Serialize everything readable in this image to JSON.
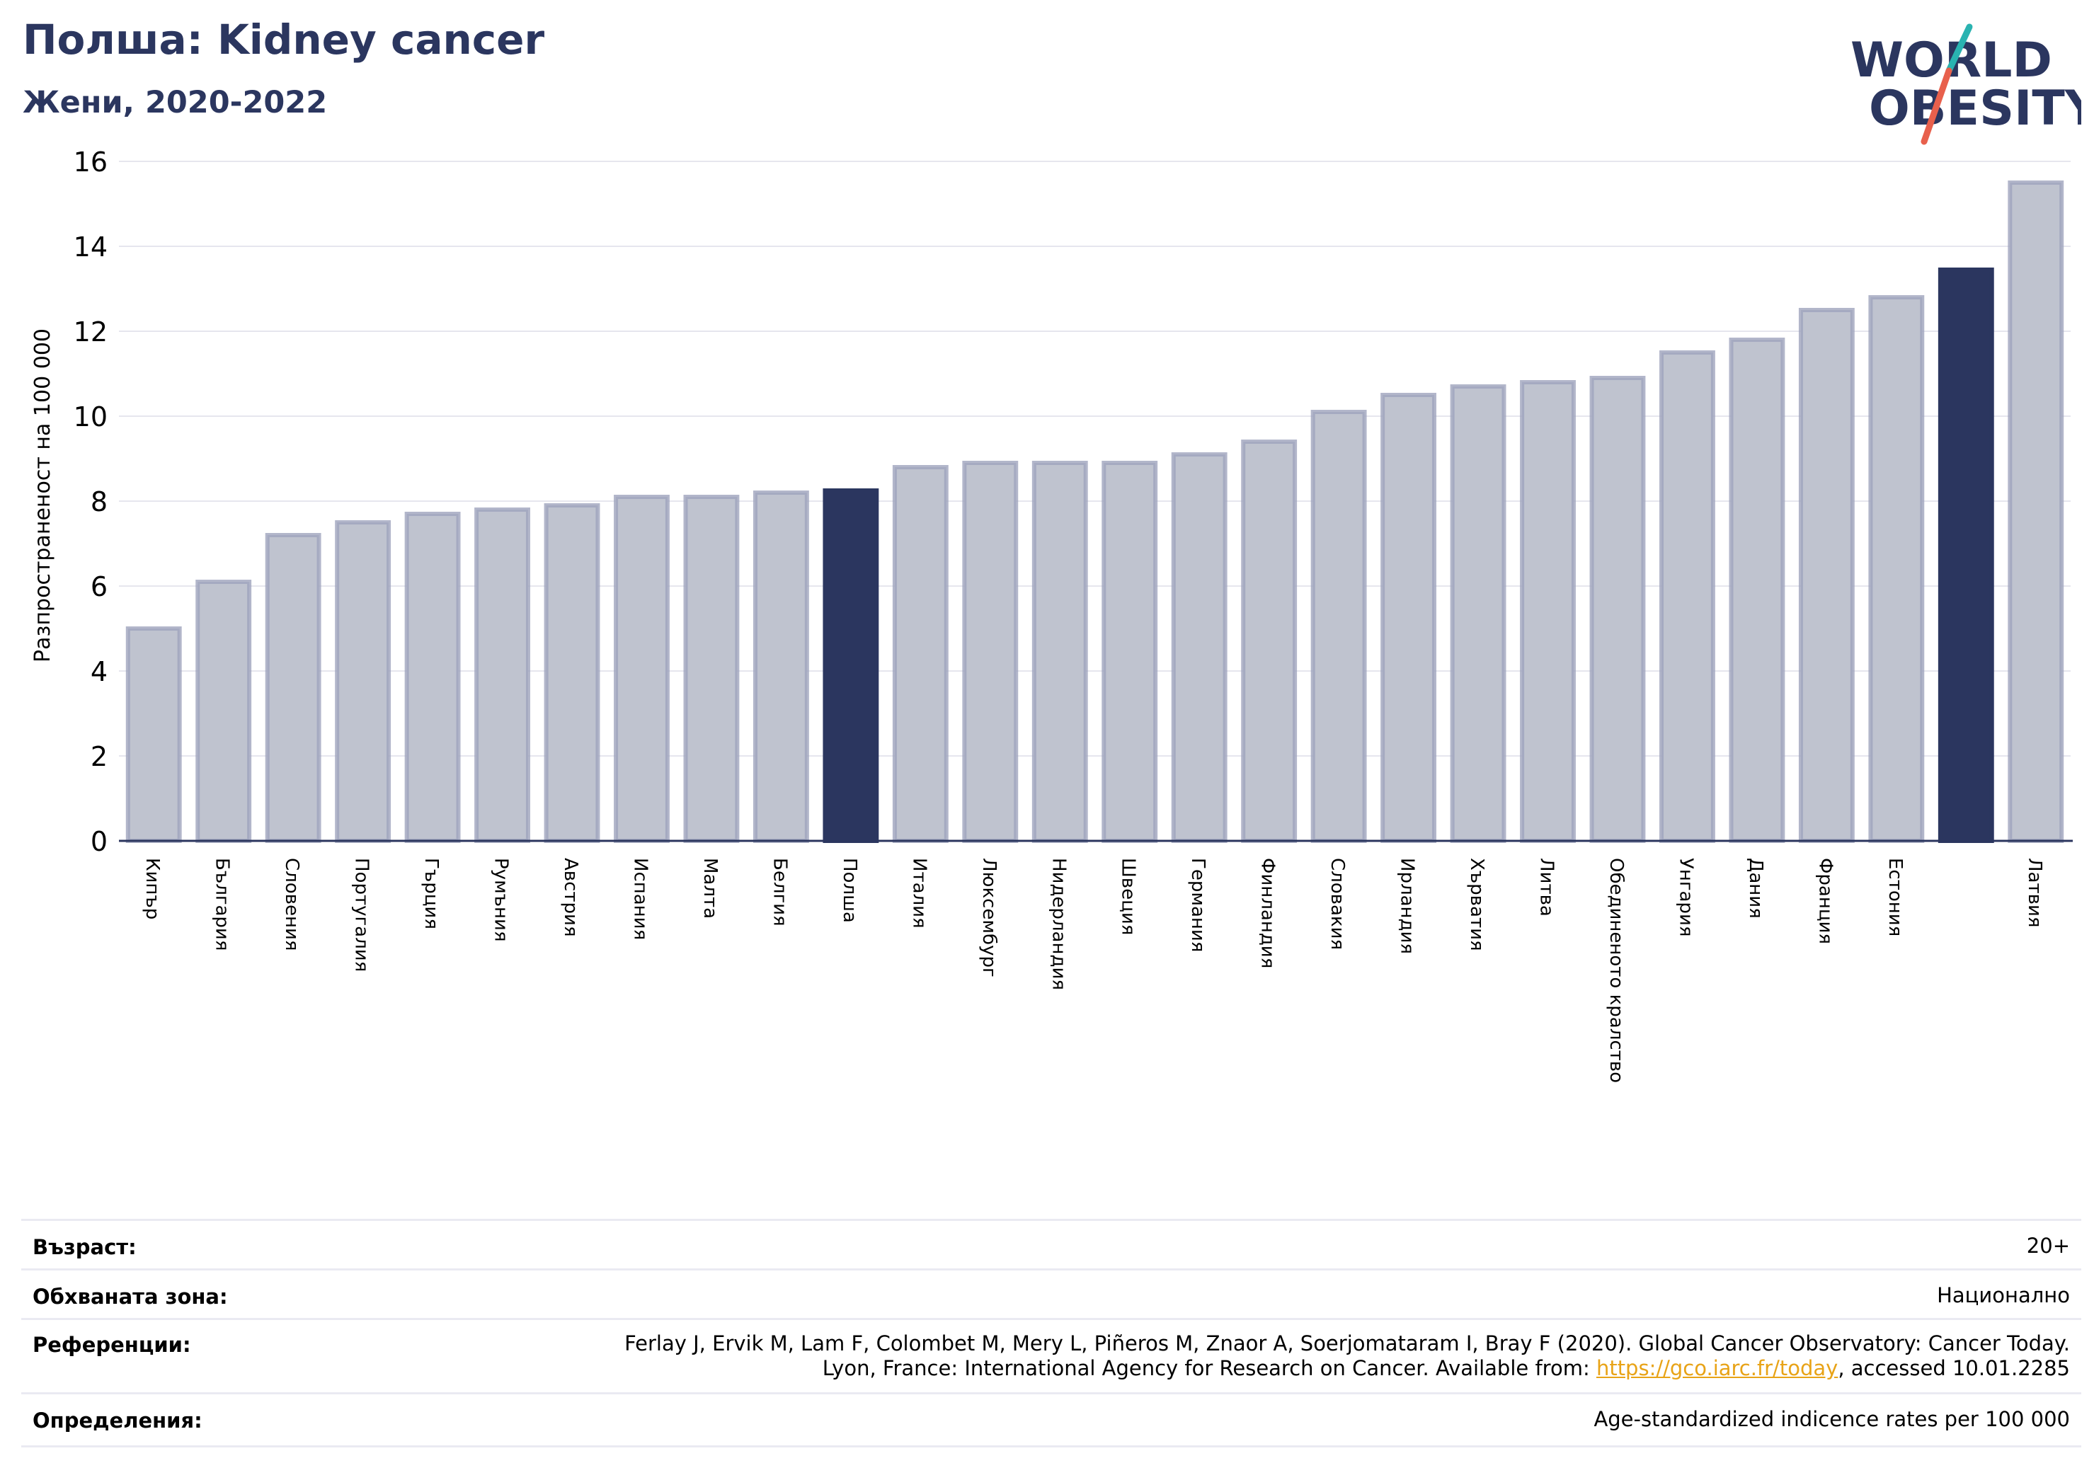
{
  "header": {
    "title": "Полша: Kidney cancer",
    "subtitle": "Жени, 2020-2022"
  },
  "logo": {
    "line1": "WORLD",
    "line2": "OBESITY",
    "colors": {
      "text": "#2b365f",
      "slash_teal": "#2ab3b1",
      "slash_coral": "#e8604c"
    }
  },
  "chart_data": {
    "type": "bar",
    "title": "",
    "xlabel": "",
    "ylabel": "Разпространеност  на 100 000",
    "ylim": [
      0,
      16
    ],
    "yticks": [
      0,
      2,
      4,
      6,
      8,
      10,
      12,
      14,
      16
    ],
    "grid": true,
    "categories": [
      "Кипър",
      "България",
      "Словения",
      "Португалия",
      "Гърция",
      "Румъния",
      "Австрия",
      "Испания",
      "Малта",
      "Белгия",
      "Полша",
      "Италия",
      "Люксембург",
      "Нидерландия",
      "Швеция",
      "Германия",
      "Финландия",
      "Словакия",
      "Ирландия",
      "Хърватия",
      "Литва",
      "Обединеното кралство",
      "Унгария",
      "Дания",
      "Франция",
      "Естония",
      "",
      "Латвия"
    ],
    "values": [
      5.0,
      6.1,
      7.2,
      7.5,
      7.7,
      7.8,
      7.9,
      8.1,
      8.1,
      8.2,
      8.25,
      8.8,
      8.9,
      8.9,
      8.9,
      9.1,
      9.4,
      10.1,
      10.5,
      10.7,
      10.8,
      10.9,
      11.5,
      11.8,
      12.5,
      12.8,
      13.45,
      15.5
    ],
    "highlighted": [
      10,
      26
    ],
    "colors": {
      "bar_fill": "#bfc3cf",
      "bar_edge": "#9fa4bd",
      "highlight": "#2b365f",
      "grid": "#e6e6ee",
      "axis": "#2b365f"
    }
  },
  "footer": {
    "rows": [
      {
        "label": "Възраст:",
        "value": "20+"
      },
      {
        "label": "Обхваната зона:",
        "value": "Национално"
      },
      {
        "label": "Референции:",
        "value_line1": "Ferlay J, Ervik M, Lam F, Colombet M, Mery L, Piñeros M, Znaor A, Soerjomataram I, Bray F (2020). Global Cancer Observatory: Cancer Today.",
        "value_line2_prefix": "Lyon, France: International Agency for Research on Cancer. Available from: ",
        "link": "https://gco.iarc.fr/today",
        "value_line2_suffix": ", accessed 10.01.2285"
      },
      {
        "label": "Определения:",
        "value": "Age-standardized indicence rates per 100 000"
      }
    ]
  }
}
